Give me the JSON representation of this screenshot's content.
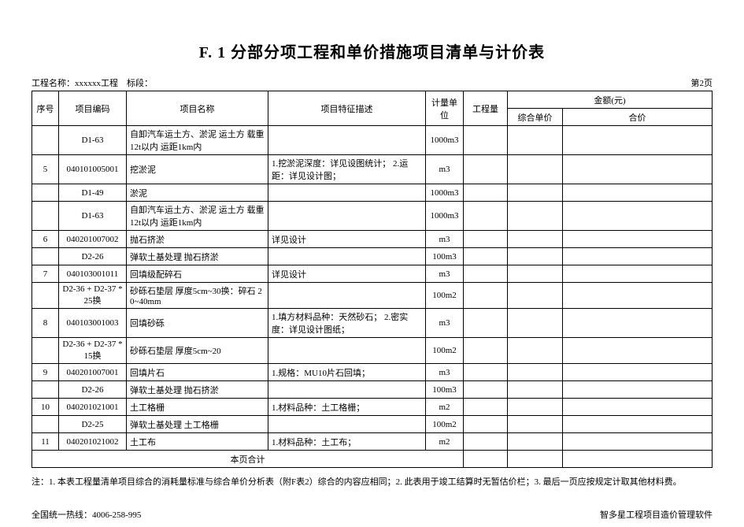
{
  "title": "F. 1 分部分项工程和单价措施项目清单与计价表",
  "header": {
    "project_label": "工程名称：",
    "project_name": "xxxxxx工程",
    "section_label": "标段：",
    "section_text": "",
    "page_text": "第2页"
  },
  "columns": {
    "seq": "序号",
    "code": "项目编码",
    "name": "项目名称",
    "desc": "项目特征描述",
    "unit": "计量单位",
    "qty": "工程量",
    "amount_group": "金额(元)",
    "unit_price": "综合单价",
    "total": "合价"
  },
  "rows": [
    {
      "seq": "",
      "code": "D1-63",
      "name": "自卸汽车运土方、淤泥 运土方 载重12t以内 运距1km内",
      "desc": "",
      "unit": "1000m3",
      "qty": "",
      "up": "",
      "amt": ""
    },
    {
      "seq": "5",
      "code": "040101005001",
      "name": "挖淤泥",
      "desc": "1.挖淤泥深度：详见设图统计；\n2.运距：详见设计图；",
      "unit": "m3",
      "qty": "",
      "up": "",
      "amt": ""
    },
    {
      "seq": "",
      "code": "D1-49",
      "name": "淤泥",
      "desc": "",
      "unit": "1000m3",
      "qty": "",
      "up": "",
      "amt": ""
    },
    {
      "seq": "",
      "code": "D1-63",
      "name": "自卸汽车运土方、淤泥 运土方 载重12t以内 运距1km内",
      "desc": "",
      "unit": "1000m3",
      "qty": "",
      "up": "",
      "amt": ""
    },
    {
      "seq": "6",
      "code": "040201007002",
      "name": "抛石挤淤",
      "desc": "详见设计",
      "unit": "m3",
      "qty": "",
      "up": "",
      "amt": ""
    },
    {
      "seq": "",
      "code": "D2-26",
      "name": "弹软土基处理 抛石挤淤",
      "desc": "",
      "unit": "100m3",
      "qty": "",
      "up": "",
      "amt": ""
    },
    {
      "seq": "7",
      "code": "040103001011",
      "name": "回填级配碎石",
      "desc": "详见设计",
      "unit": "m3",
      "qty": "",
      "up": "",
      "amt": ""
    },
    {
      "seq": "",
      "code": "D2-36 + D2-37 *25换",
      "name": "砂砾石垫层 厚度5cm~30换：碎石 20~40mm",
      "desc": "",
      "unit": "100m2",
      "qty": "",
      "up": "",
      "amt": ""
    },
    {
      "seq": "8",
      "code": "040103001003",
      "name": "回填砂砾",
      "desc": "1.填方材料品种：天然砂石；\n2.密实度：详见设计图纸；",
      "unit": "m3",
      "qty": "",
      "up": "",
      "amt": ""
    },
    {
      "seq": "",
      "code": "D2-36 + D2-37 *15换",
      "name": "砂砾石垫层 厚度5cm~20",
      "desc": "",
      "unit": "100m2",
      "qty": "",
      "up": "",
      "amt": ""
    },
    {
      "seq": "9",
      "code": "040201007001",
      "name": "回填片石",
      "desc": "1.规格：MU10片石回填；",
      "unit": "m3",
      "qty": "",
      "up": "",
      "amt": ""
    },
    {
      "seq": "",
      "code": "D2-26",
      "name": "弹软土基处理 抛石挤淤",
      "desc": "",
      "unit": "100m3",
      "qty": "",
      "up": "",
      "amt": ""
    },
    {
      "seq": "10",
      "code": "040201021001",
      "name": "土工格栅",
      "desc": "1.材料品种：土工格栅；",
      "unit": "m2",
      "qty": "",
      "up": "",
      "amt": ""
    },
    {
      "seq": "",
      "code": "D2-25",
      "name": "弹软土基处理 土工格栅",
      "desc": "",
      "unit": "100m2",
      "qty": "",
      "up": "",
      "amt": ""
    },
    {
      "seq": "11",
      "code": "040201021002",
      "name": "土工布",
      "desc": "1.材料品种：土工布；",
      "unit": "m2",
      "qty": "",
      "up": "",
      "amt": ""
    }
  ],
  "subtotal_label": "本页合计",
  "note": "注：1. 本表工程量清单项目综合的消耗量标准与综合单价分析表（附F表2）综合的内容应相同；2. 此表用于竣工结算时无暂估价栏；3. 最后一页应按规定计取其他材料费。",
  "footer": {
    "left": "全国统一热线：4006-258-995",
    "right": "智多星工程项目造价管理软件"
  }
}
